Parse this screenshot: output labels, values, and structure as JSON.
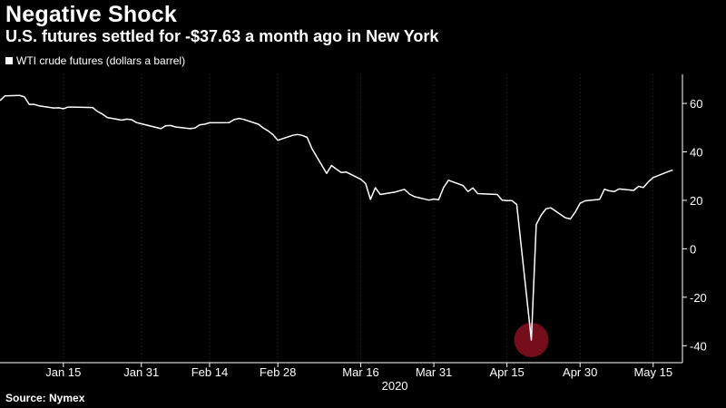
{
  "header": {
    "title": "Negative Shock",
    "subtitle": "U.S. futures settled for -$37.63 a month ago in New York"
  },
  "footer": {
    "source": "Source: Nymex"
  },
  "colors": {
    "background": "#000000",
    "line": "#ffffff",
    "grid": "#333333",
    "highlight": "#8b0f1e"
  },
  "chart_data": {
    "type": "line",
    "title": "Negative Shock",
    "subtitle": "U.S. futures settled for -$37.63 a month ago in New York",
    "series": [
      {
        "name": "WTI crude futures (dollars a barrel)",
        "x": [
          "2020-01-02",
          "2020-01-03",
          "2020-01-06",
          "2020-01-07",
          "2020-01-08",
          "2020-01-09",
          "2020-01-10",
          "2020-01-13",
          "2020-01-14",
          "2020-01-15",
          "2020-01-16",
          "2020-01-17",
          "2020-01-21",
          "2020-01-22",
          "2020-01-23",
          "2020-01-24",
          "2020-01-27",
          "2020-01-28",
          "2020-01-29",
          "2020-01-30",
          "2020-01-31",
          "2020-02-03",
          "2020-02-04",
          "2020-02-05",
          "2020-02-06",
          "2020-02-07",
          "2020-02-10",
          "2020-02-11",
          "2020-02-12",
          "2020-02-13",
          "2020-02-14",
          "2020-02-18",
          "2020-02-19",
          "2020-02-20",
          "2020-02-21",
          "2020-02-24",
          "2020-02-25",
          "2020-02-26",
          "2020-02-27",
          "2020-02-28",
          "2020-03-02",
          "2020-03-03",
          "2020-03-04",
          "2020-03-05",
          "2020-03-06",
          "2020-03-09",
          "2020-03-10",
          "2020-03-11",
          "2020-03-12",
          "2020-03-13",
          "2020-03-16",
          "2020-03-17",
          "2020-03-18",
          "2020-03-19",
          "2020-03-20",
          "2020-03-23",
          "2020-03-24",
          "2020-03-25",
          "2020-03-26",
          "2020-03-27",
          "2020-03-30",
          "2020-03-31",
          "2020-04-01",
          "2020-04-02",
          "2020-04-03",
          "2020-04-06",
          "2020-04-07",
          "2020-04-08",
          "2020-04-09",
          "2020-04-13",
          "2020-04-14",
          "2020-04-15",
          "2020-04-16",
          "2020-04-17",
          "2020-04-20",
          "2020-04-21",
          "2020-04-22",
          "2020-04-23",
          "2020-04-24",
          "2020-04-27",
          "2020-04-28",
          "2020-04-29",
          "2020-04-30",
          "2020-05-01",
          "2020-05-04",
          "2020-05-05",
          "2020-05-06",
          "2020-05-07",
          "2020-05-08",
          "2020-05-11",
          "2020-05-12",
          "2020-05-13",
          "2020-05-14",
          "2020-05-15",
          "2020-05-18",
          "2020-05-19"
        ],
        "values": [
          61.2,
          63.1,
          63.3,
          62.7,
          59.6,
          59.6,
          59.0,
          58.1,
          58.2,
          57.8,
          58.5,
          58.5,
          58.3,
          56.7,
          55.6,
          54.2,
          53.1,
          53.5,
          53.3,
          52.1,
          51.6,
          50.1,
          49.6,
          50.8,
          50.9,
          50.3,
          49.6,
          49.9,
          51.2,
          51.4,
          52.0,
          52.1,
          53.3,
          53.8,
          53.4,
          51.4,
          49.9,
          48.7,
          47.1,
          44.8,
          46.8,
          47.2,
          46.8,
          46.0,
          41.3,
          31.1,
          34.4,
          32.9,
          31.5,
          31.7,
          28.7,
          26.9,
          20.4,
          25.2,
          22.4,
          23.4,
          24.0,
          24.5,
          22.6,
          21.5,
          20.1,
          20.5,
          20.3,
          25.3,
          28.3,
          26.1,
          23.6,
          25.1,
          22.8,
          22.4,
          20.1,
          19.9,
          19.9,
          18.3,
          -37.63,
          10.0,
          13.8,
          16.5,
          16.9,
          12.8,
          12.3,
          15.1,
          18.8,
          19.8,
          20.4,
          24.6,
          23.9,
          23.6,
          24.7,
          24.1,
          25.8,
          25.3,
          27.6,
          29.4,
          31.8,
          32.5
        ]
      }
    ],
    "x_ticks": [
      "Jan 15",
      "Jan 31",
      "Feb 14",
      "Feb 28",
      "Mar 16",
      "Mar 31",
      "Apr 15",
      "Apr 30",
      "May 15"
    ],
    "x_tick_dates": [
      "2020-01-15",
      "2020-01-31",
      "2020-02-14",
      "2020-02-28",
      "2020-03-16",
      "2020-03-31",
      "2020-04-15",
      "2020-04-30",
      "2020-05-15"
    ],
    "x_year_label": "2020",
    "y_ticks": [
      60,
      40,
      20,
      0,
      -20,
      -40
    ],
    "y_tick_labels": [
      "60",
      "40",
      "20",
      "0",
      "-20",
      "-40"
    ],
    "ylim": [
      -47,
      72
    ],
    "xlim": [
      "2020-01-02",
      "2020-05-21"
    ],
    "grid": "vertical dotted lines at x ticks",
    "y_axis_side": "right",
    "legend": "top-left",
    "highlight": {
      "x": "2020-04-20",
      "y": -37.63,
      "shape": "circle"
    }
  }
}
